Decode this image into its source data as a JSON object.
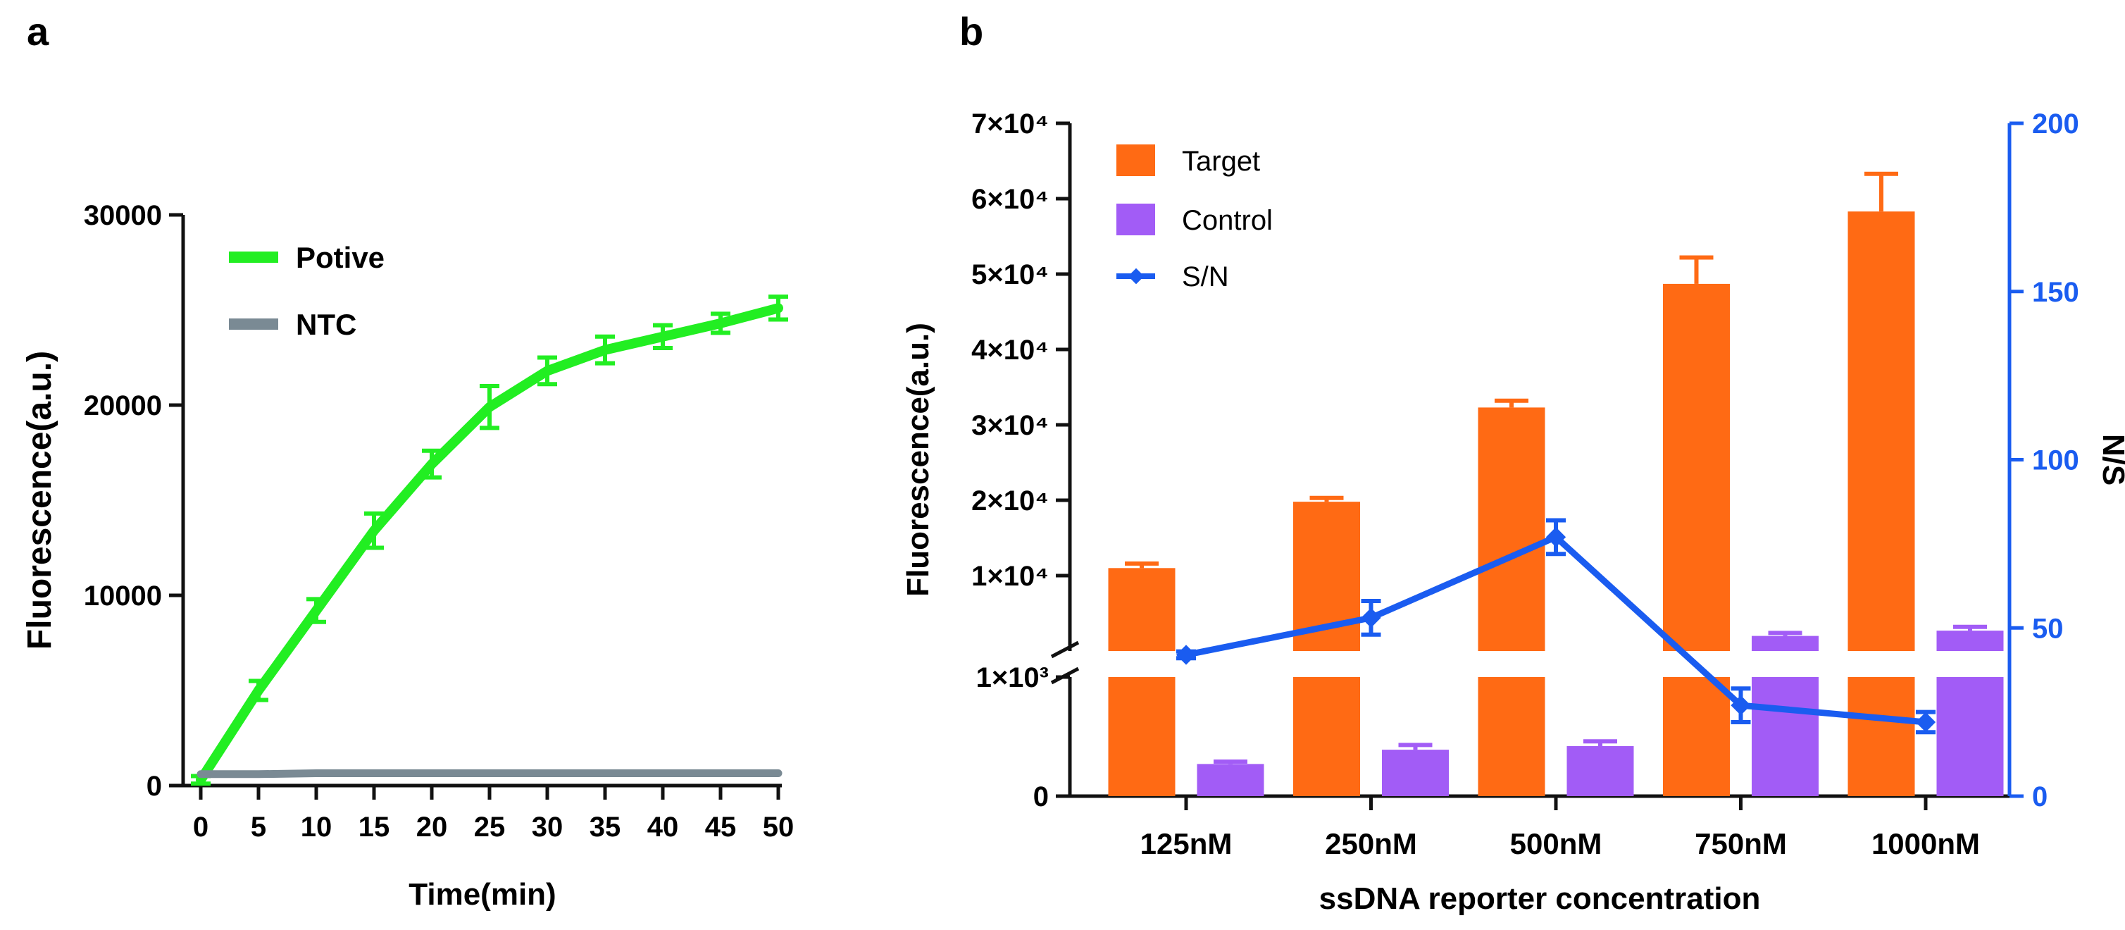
{
  "panels": {
    "a": "a",
    "b": "b"
  },
  "colors": {
    "positive": "#22ee22",
    "ntc": "#7a8a94",
    "target": "#ff6a14",
    "control": "#a25cf6",
    "sn": "#1a5cf0",
    "axis": "#111111"
  },
  "chart_data": [
    {
      "type": "line",
      "panel": "a",
      "xlabel": "Time(min)",
      "ylabel": "Fluorescence(a.u.)",
      "xlim": [
        0,
        50
      ],
      "ylim": [
        0,
        30000
      ],
      "xticks": [
        0,
        5,
        10,
        15,
        20,
        25,
        30,
        35,
        40,
        45,
        50
      ],
      "yticks": [
        0,
        10000,
        20000,
        30000
      ],
      "legend_position": "top-left",
      "series": [
        {
          "name": "Potive",
          "x": [
            0,
            5,
            10,
            15,
            20,
            25,
            30,
            35,
            40,
            45,
            50
          ],
          "y": [
            300,
            5000,
            9200,
            13400,
            16900,
            19900,
            21800,
            22900,
            23600,
            24300,
            25100
          ],
          "err": [
            200,
            500,
            600,
            900,
            700,
            1100,
            700,
            700,
            600,
            500,
            600
          ]
        },
        {
          "name": "NTC",
          "x": [
            0,
            5,
            10,
            15,
            20,
            25,
            30,
            35,
            40,
            45,
            50
          ],
          "y": [
            600,
            600,
            650,
            650,
            650,
            650,
            650,
            650,
            650,
            650,
            650
          ],
          "err": [
            0,
            0,
            0,
            0,
            0,
            0,
            0,
            0,
            0,
            0,
            0
          ]
        }
      ]
    },
    {
      "type": "bar",
      "panel": "b",
      "xlabel": "ssDNA reporter concentration",
      "ylabel": "Fluorescence(a.u.)",
      "ylabel_right": "N/S",
      "categories": [
        "125nM",
        "250nM",
        "500nM",
        "750nM",
        "1000nM"
      ],
      "y_break": {
        "lower_segment": [
          0,
          1000
        ],
        "upper_segment": [
          0,
          70000
        ]
      },
      "yticks_left": [
        {
          "value": 0,
          "label": "0"
        },
        {
          "value": 1000,
          "label": "1×10³"
        },
        {
          "value": 10000,
          "label": "1×10⁴"
        },
        {
          "value": 20000,
          "label": "2×10⁴"
        },
        {
          "value": 30000,
          "label": "3×10⁴"
        },
        {
          "value": 40000,
          "label": "4×10⁴"
        },
        {
          "value": 50000,
          "label": "5×10⁴"
        },
        {
          "value": 60000,
          "label": "6×10⁴"
        },
        {
          "value": 70000,
          "label": "7×10⁴"
        }
      ],
      "ylim_right": [
        0,
        200
      ],
      "yticks_right": [
        0,
        50,
        100,
        150,
        200
      ],
      "legend_position": "top-left",
      "series": [
        {
          "name": "Target",
          "kind": "bar",
          "values": [
            11000,
            19800,
            32300,
            48700,
            58300
          ],
          "err": [
            600,
            500,
            900,
            3500,
            5000
          ]
        },
        {
          "name": "Control",
          "kind": "bar",
          "values": [
            270,
            390,
            420,
            2000,
            2700
          ],
          "err": [
            20,
            40,
            40,
            400,
            500
          ]
        },
        {
          "name": "S/N",
          "kind": "line",
          "axis": "right",
          "values": [
            42,
            53,
            77,
            27,
            22
          ],
          "err": [
            1,
            5,
            5,
            5,
            3
          ]
        }
      ]
    }
  ]
}
